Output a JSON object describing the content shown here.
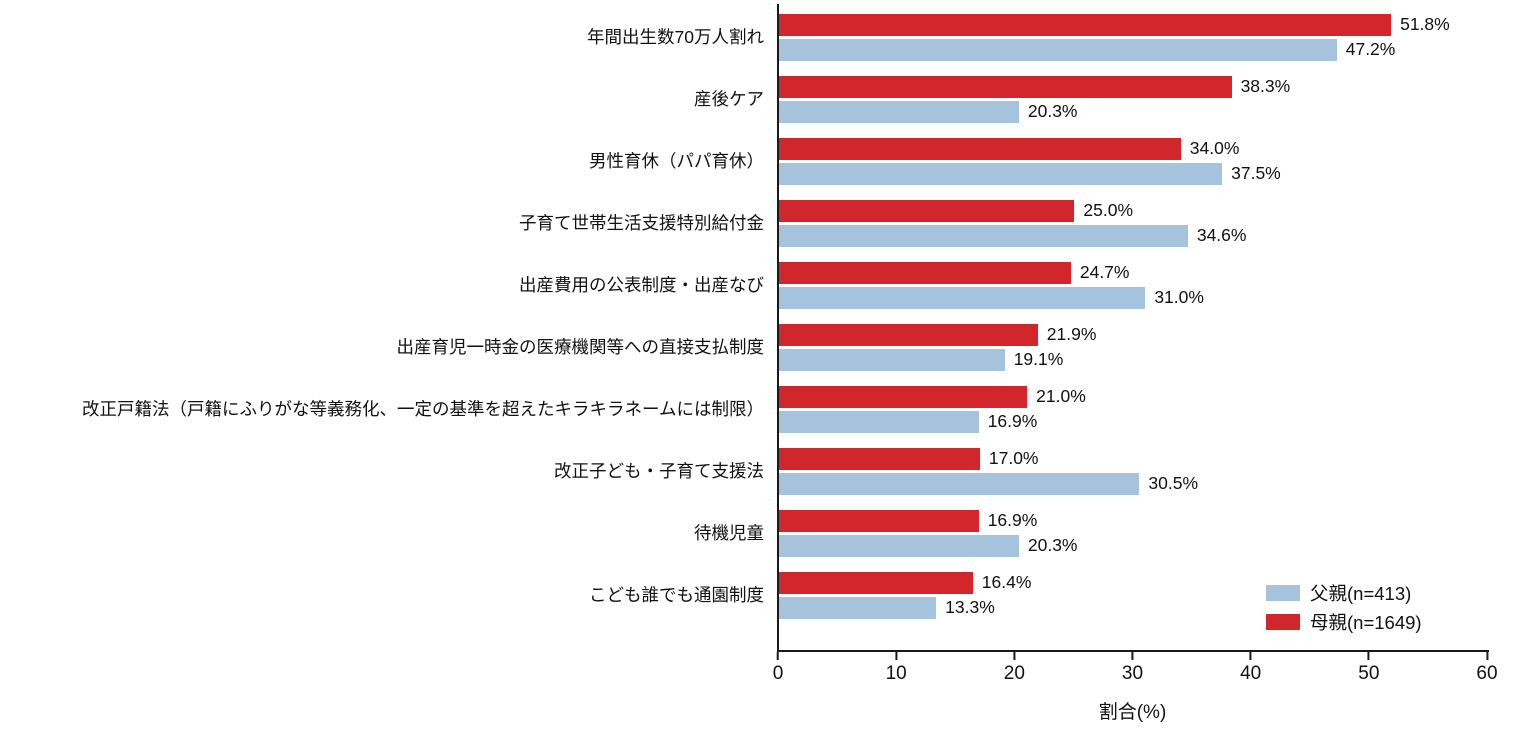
{
  "chart_data": {
    "type": "bar",
    "orientation": "horizontal",
    "title": "",
    "xlabel": "割合(%)",
    "ylabel": "",
    "xlim": [
      0,
      60
    ],
    "xticks": [
      0,
      10,
      20,
      30,
      40,
      50,
      60
    ],
    "grid": false,
    "legend_position": "lower right",
    "value_label_format": "one_decimal_percent",
    "categories": [
      "年間出生数70万人割れ",
      "産後ケア",
      "男性育休（パパ育休）",
      "子育て世帯生活支援特別給付金",
      "出産費用の公表制度・出産なび",
      "出産育児一時金の医療機関等への直接支払制度",
      "改正戸籍法（戸籍にふりがな等義務化、一定の基準を超えたキラキラネームには制限）",
      "改正子ども・子育て支援法",
      "待機児童",
      "こども誰でも通園制度"
    ],
    "series": [
      {
        "name": "母親(n=1649)",
        "color": "#d0262c",
        "values": [
          51.8,
          38.3,
          34.0,
          25.0,
          24.7,
          21.9,
          21.0,
          17.0,
          16.9,
          16.4
        ]
      },
      {
        "name": "父親(n=413)",
        "color": "#a6c3dd",
        "values": [
          47.2,
          20.3,
          37.5,
          34.6,
          31.0,
          19.1,
          16.9,
          30.5,
          20.3,
          13.3
        ]
      }
    ],
    "legend": [
      {
        "label": "父親(n=413)",
        "color": "#a6c3dd"
      },
      {
        "label": "母親(n=1649)",
        "color": "#d0262c"
      }
    ]
  }
}
